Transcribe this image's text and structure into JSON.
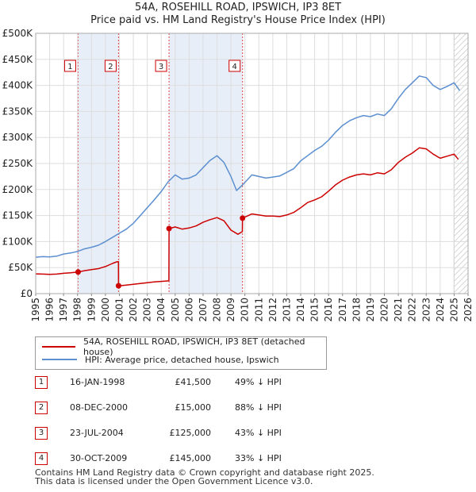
{
  "chart_data": {
    "type": "line",
    "title": "54A, ROSEHILL ROAD, IPSWICH, IP3 8ET",
    "subtitle": "Price paid vs. HM Land Registry's House Price Index (HPI)",
    "xlabel": "",
    "ylabel": "",
    "xlim": [
      1995,
      2026
    ],
    "ylim": [
      0,
      500000
    ],
    "y_ticks": [
      {
        "value": 0,
        "label": "£0"
      },
      {
        "value": 50000,
        "label": "£50K"
      },
      {
        "value": 100000,
        "label": "£100K"
      },
      {
        "value": 150000,
        "label": "£150K"
      },
      {
        "value": 200000,
        "label": "£200K"
      },
      {
        "value": 250000,
        "label": "£250K"
      },
      {
        "value": 300000,
        "label": "£300K"
      },
      {
        "value": 350000,
        "label": "£350K"
      },
      {
        "value": 400000,
        "label": "£400K"
      },
      {
        "value": 450000,
        "label": "£450K"
      },
      {
        "value": 500000,
        "label": "£500K"
      }
    ],
    "x_ticks": [
      "1995",
      "1996",
      "1997",
      "1998",
      "1999",
      "2000",
      "2001",
      "2002",
      "2003",
      "2004",
      "2005",
      "2006",
      "2007",
      "2008",
      "2009",
      "2010",
      "2011",
      "2012",
      "2013",
      "2014",
      "2015",
      "2016",
      "2017",
      "2018",
      "2019",
      "2020",
      "2021",
      "2022",
      "2023",
      "2024",
      "2025",
      "2026"
    ],
    "grid": true,
    "legend_placement": "below",
    "series": [
      {
        "name": "54A, ROSEHILL ROAD, IPSWICH, IP3 8ET (detached house)",
        "color": "#cc0000",
        "points": [
          [
            1995.0,
            38000
          ],
          [
            1995.5,
            37500
          ],
          [
            1996.0,
            37000
          ],
          [
            1996.5,
            37500
          ],
          [
            1997.0,
            39000
          ],
          [
            1997.5,
            40000
          ],
          [
            1998.04,
            41500
          ],
          [
            1998.5,
            44000
          ],
          [
            1999.0,
            46000
          ],
          [
            1999.5,
            48000
          ],
          [
            2000.0,
            52000
          ],
          [
            2000.5,
            58000
          ],
          [
            2000.8,
            61000
          ],
          [
            2000.93,
            61500
          ],
          [
            2000.94,
            15000
          ],
          [
            2001.5,
            16500
          ],
          [
            2002.0,
            18000
          ],
          [
            2002.5,
            19500
          ],
          [
            2003.0,
            21000
          ],
          [
            2003.5,
            22500
          ],
          [
            2004.0,
            23500
          ],
          [
            2004.55,
            24500
          ],
          [
            2004.56,
            125000
          ],
          [
            2005.0,
            128000
          ],
          [
            2005.5,
            124000
          ],
          [
            2006.0,
            126000
          ],
          [
            2006.5,
            130000
          ],
          [
            2007.0,
            137000
          ],
          [
            2007.5,
            142000
          ],
          [
            2008.0,
            146000
          ],
          [
            2008.5,
            140000
          ],
          [
            2009.0,
            122000
          ],
          [
            2009.5,
            114000
          ],
          [
            2009.82,
            119000
          ],
          [
            2009.83,
            145000
          ],
          [
            2010.5,
            153000
          ],
          [
            2011.0,
            151000
          ],
          [
            2011.5,
            149000
          ],
          [
            2012.0,
            149000
          ],
          [
            2012.5,
            148000
          ],
          [
            2013.0,
            151000
          ],
          [
            2013.5,
            156000
          ],
          [
            2014.0,
            165000
          ],
          [
            2014.5,
            175000
          ],
          [
            2015.0,
            180000
          ],
          [
            2015.5,
            186000
          ],
          [
            2016.0,
            197000
          ],
          [
            2016.5,
            209000
          ],
          [
            2017.0,
            218000
          ],
          [
            2017.5,
            224000
          ],
          [
            2018.0,
            228000
          ],
          [
            2018.5,
            230000
          ],
          [
            2019.0,
            228000
          ],
          [
            2019.5,
            232000
          ],
          [
            2020.0,
            230000
          ],
          [
            2020.5,
            238000
          ],
          [
            2021.0,
            252000
          ],
          [
            2021.5,
            262000
          ],
          [
            2022.0,
            270000
          ],
          [
            2022.5,
            280000
          ],
          [
            2023.0,
            278000
          ],
          [
            2023.5,
            268000
          ],
          [
            2024.0,
            260000
          ],
          [
            2024.5,
            264000
          ],
          [
            2025.0,
            268000
          ],
          [
            2025.3,
            258000
          ]
        ]
      },
      {
        "name": "HPI: Average price, detached house, Ipswich",
        "color": "#5b8fd0",
        "points": [
          [
            1995.0,
            70000
          ],
          [
            1995.5,
            71000
          ],
          [
            1996.0,
            70500
          ],
          [
            1996.5,
            72000
          ],
          [
            1997.0,
            76000
          ],
          [
            1997.5,
            78000
          ],
          [
            1998.0,
            81000
          ],
          [
            1998.5,
            86000
          ],
          [
            1999.0,
            89000
          ],
          [
            1999.5,
            93000
          ],
          [
            2000.0,
            100000
          ],
          [
            2000.5,
            108000
          ],
          [
            2001.0,
            116000
          ],
          [
            2001.5,
            124000
          ],
          [
            2002.0,
            135000
          ],
          [
            2002.5,
            150000
          ],
          [
            2003.0,
            165000
          ],
          [
            2003.5,
            180000
          ],
          [
            2004.0,
            196000
          ],
          [
            2004.5,
            215000
          ],
          [
            2005.0,
            228000
          ],
          [
            2005.5,
            220000
          ],
          [
            2006.0,
            222000
          ],
          [
            2006.5,
            228000
          ],
          [
            2007.0,
            242000
          ],
          [
            2007.5,
            256000
          ],
          [
            2008.0,
            265000
          ],
          [
            2008.5,
            252000
          ],
          [
            2009.0,
            225000
          ],
          [
            2009.4,
            198000
          ],
          [
            2009.8,
            208000
          ],
          [
            2010.5,
            228000
          ],
          [
            2011.0,
            225000
          ],
          [
            2011.5,
            222000
          ],
          [
            2012.0,
            224000
          ],
          [
            2012.5,
            226000
          ],
          [
            2013.0,
            233000
          ],
          [
            2013.5,
            240000
          ],
          [
            2014.0,
            255000
          ],
          [
            2014.5,
            265000
          ],
          [
            2015.0,
            275000
          ],
          [
            2015.5,
            283000
          ],
          [
            2016.0,
            295000
          ],
          [
            2016.5,
            310000
          ],
          [
            2017.0,
            323000
          ],
          [
            2017.5,
            332000
          ],
          [
            2018.0,
            338000
          ],
          [
            2018.5,
            342000
          ],
          [
            2019.0,
            340000
          ],
          [
            2019.5,
            345000
          ],
          [
            2020.0,
            342000
          ],
          [
            2020.5,
            355000
          ],
          [
            2021.0,
            375000
          ],
          [
            2021.5,
            392000
          ],
          [
            2022.0,
            405000
          ],
          [
            2022.5,
            418000
          ],
          [
            2023.0,
            415000
          ],
          [
            2023.5,
            400000
          ],
          [
            2024.0,
            392000
          ],
          [
            2024.5,
            398000
          ],
          [
            2025.0,
            405000
          ],
          [
            2025.4,
            390000
          ]
        ]
      }
    ],
    "sales": [
      {
        "num": "1",
        "x": 1998.04,
        "price": 41500,
        "date": "16-JAN-1998",
        "price_label": "£41,500",
        "hpi": "49% ↓ HPI"
      },
      {
        "num": "2",
        "x": 2000.94,
        "price": 15000,
        "date": "08-DEC-2000",
        "price_label": "£15,000",
        "hpi": "88% ↓ HPI"
      },
      {
        "num": "3",
        "x": 2004.56,
        "price": 125000,
        "date": "23-JUL-2004",
        "price_label": "£125,000",
        "hpi": "43% ↓ HPI"
      },
      {
        "num": "4",
        "x": 2009.83,
        "price": 145000,
        "date": "30-OCT-2009",
        "price_label": "£145,000",
        "hpi": "33% ↓ HPI"
      }
    ],
    "shaded_ranges": [
      [
        1998.04,
        2000.94
      ],
      [
        2004.56,
        2009.83
      ]
    ],
    "hatched_from": 2025.0
  },
  "legend": {
    "property": "54A, ROSEHILL ROAD, IPSWICH, IP3 8ET (detached house)",
    "hpi": "HPI: Average price, detached house, Ipswich"
  },
  "footer": {
    "line1": "Contains HM Land Registry data © Crown copyright and database right 2025.",
    "line2": "This data is licensed under the Open Government Licence v3.0."
  },
  "colors": {
    "property_line": "#cc0000",
    "hpi_line": "#5b8fd0",
    "shade": "#e8eef8",
    "grid": "#dddddd"
  }
}
